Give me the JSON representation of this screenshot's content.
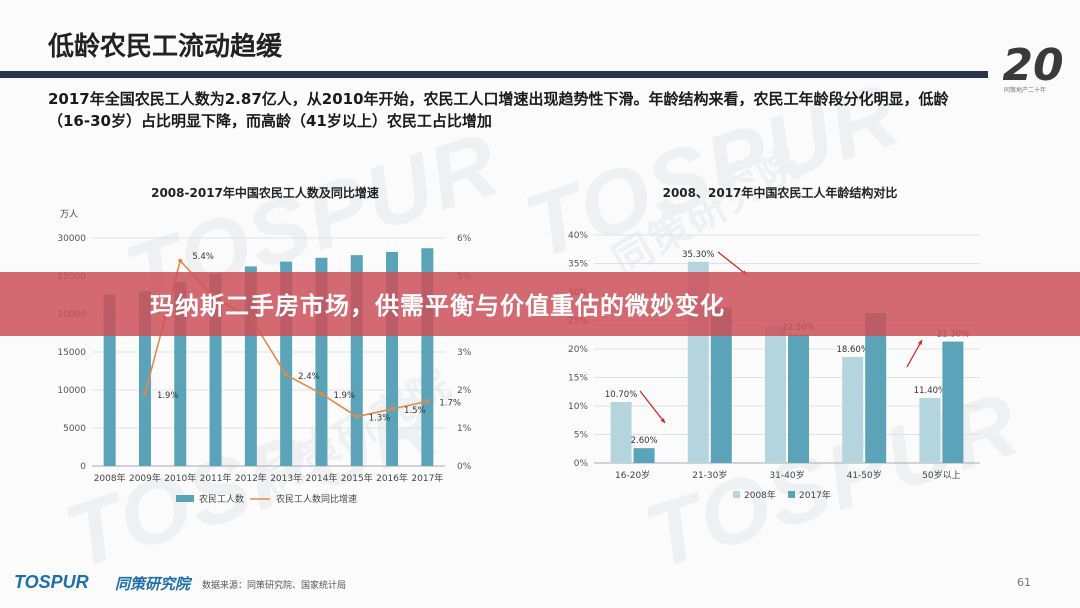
{
  "page": {
    "title": "低龄农民工流动趋缓",
    "intro": "2017年全国农民工人数为2.87亿人，从2010年开始，农民工人口增速出现趋势性下滑。年龄结构来看，农民工年龄段分化明显，低龄（16-30岁）占比明显下降，而高龄（41岁以上）农民工占比增加",
    "logo_number": "20",
    "logo_subtext": "同策地产二十年",
    "banner_text": "玛纳斯二手房市场，供需平衡与价值重估的微妙变化",
    "brand_en": "TOSPUR",
    "brand_cn": "同策研究院",
    "source": "数据来源：同策研究院、国家统计局",
    "page_number": "61",
    "watermark_en": "TOSPUR",
    "watermark_cn": "同策研究院",
    "colors": {
      "accent_dark": "#27364a",
      "bar_2017": "#5aa3b8",
      "bar_2008": "#b4d4de",
      "line": "#e08a4a",
      "banner": "#cc5058",
      "arrow": "#d22020"
    }
  },
  "chart_data": [
    {
      "type": "bar",
      "title": "2008-2017年中国农民工人数及同比增速",
      "ylabel": "万人",
      "categories": [
        "2008年",
        "2009年",
        "2010年",
        "2011年",
        "2012年",
        "2013年",
        "2014年",
        "2015年",
        "2016年",
        "2017年"
      ],
      "ylim": [
        0,
        30000
      ],
      "yticks": [
        "0",
        "5000",
        "10000",
        "15000",
        "20000",
        "25000",
        "30000"
      ],
      "y2lim": [
        0,
        6
      ],
      "y2ticks": [
        "0%",
        "1%",
        "2%",
        "3%",
        "4%",
        "5%",
        "6%"
      ],
      "series": [
        {
          "name": "农民工人数",
          "type": "bar",
          "values": [
            22542,
            22978,
            24223,
            25278,
            26261,
            26894,
            27395,
            27747,
            28171,
            28652
          ]
        },
        {
          "name": "农民工人数同比增速",
          "type": "line",
          "axis": "right",
          "values": [
            null,
            1.9,
            5.4,
            4.4,
            3.9,
            2.4,
            1.9,
            1.3,
            1.5,
            1.7
          ],
          "labels": [
            "",
            "1.9%",
            "5.4%",
            "",
            "",
            "2.4%",
            "1.9%",
            "1.3%",
            "1.5%",
            "1.7%"
          ]
        }
      ],
      "grid": true,
      "legend": "bottom"
    },
    {
      "type": "bar",
      "title": "2008、2017年中国农民工人年龄结构对比",
      "categories": [
        "16-20岁",
        "21-30岁",
        "31-40岁",
        "41-50岁",
        "50岁以上"
      ],
      "ylim": [
        0,
        40
      ],
      "yticks": [
        "0%",
        "5%",
        "10%",
        "15%",
        "20%",
        "25%",
        "30%",
        "35%",
        "40%"
      ],
      "series": [
        {
          "name": "2008年",
          "values": [
            10.7,
            35.3,
            24.0,
            18.6,
            11.4
          ],
          "labels": [
            "10.70%",
            "35.30%",
            "",
            "18.60%",
            "11.40%"
          ]
        },
        {
          "name": "2017年",
          "values": [
            2.6,
            27.3,
            22.5,
            26.3,
            21.3
          ],
          "labels": [
            "2.60%",
            "",
            "22.50%",
            "",
            "21.30%"
          ]
        }
      ],
      "grid": true,
      "legend": "bottom"
    }
  ]
}
